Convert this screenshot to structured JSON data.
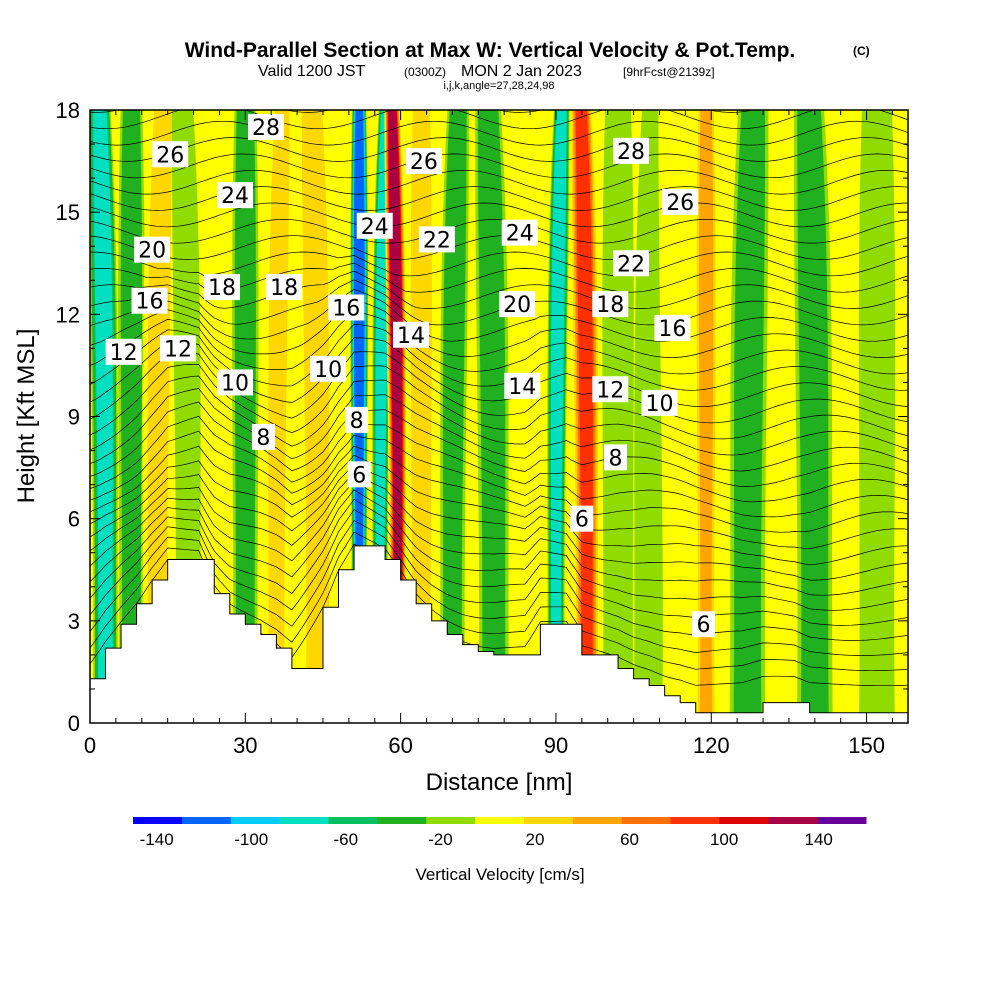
{
  "chart_data": {
    "type": "heatmap",
    "title": "Wind-Parallel Section at Max W: Vertical Velocity & Pot.Temp.",
    "title_units": "(C)",
    "subtitle_prefix": "Valid 1200 JST",
    "subtitle_utc": "(0300Z)",
    "subtitle_main": "MON 2 Jan 2023",
    "subtitle_fcst": "[9hrFcst@2139z]",
    "subtitle_indices": "i,j,k,angle=27,28,24,98",
    "xlabel": "Distance [nm]",
    "ylabel": "Height [Kft MSL]",
    "xlim": [
      0,
      158
    ],
    "ylim": [
      0,
      18
    ],
    "xticks": [
      0,
      30,
      60,
      90,
      120,
      150
    ],
    "yticks": [
      0,
      3,
      6,
      9,
      12,
      15,
      18
    ],
    "colorbar": {
      "label": "Vertical Velocity [cm/s]",
      "ticks": [
        -140,
        -100,
        -60,
        -20,
        20,
        60,
        100,
        140
      ],
      "bounds": [
        -150,
        160
      ],
      "colors": [
        "#0000ff",
        "#0066ff",
        "#00ccff",
        "#00e0c0",
        "#00c060",
        "#20b020",
        "#90dc00",
        "#ffff00",
        "#ffd700",
        "#ffa500",
        "#ff7000",
        "#ff3000",
        "#dd0000",
        "#aa0044",
        "#660099"
      ]
    },
    "vv_features": [
      {
        "x": 3,
        "w": 2.5,
        "value": -80
      },
      {
        "x": 8,
        "w": 2.5,
        "value": -30
      },
      {
        "x": 13,
        "w": 3,
        "value": 20
      },
      {
        "x": 19,
        "w": 2.5,
        "value": -20
      },
      {
        "x": 30,
        "w": 2.5,
        "value": -40
      },
      {
        "x": 36,
        "w": 2.5,
        "value": 25
      },
      {
        "x": 44,
        "w": 3,
        "value": 30
      },
      {
        "x": 52,
        "w": 1.6,
        "value": -110
      },
      {
        "x": 56,
        "w": 1.6,
        "value": -70
      },
      {
        "x": 59.5,
        "w": 1.8,
        "value": 125
      },
      {
        "x": 64,
        "w": 2.5,
        "value": 30
      },
      {
        "x": 70,
        "w": 2.5,
        "value": -30
      },
      {
        "x": 78,
        "w": 3,
        "value": -30
      },
      {
        "x": 85,
        "w": 2.5,
        "value": 15
      },
      {
        "x": 90,
        "w": 1.8,
        "value": -80
      },
      {
        "x": 96,
        "w": 2.6,
        "value": 85
      },
      {
        "x": 102,
        "w": 3,
        "value": -25
      },
      {
        "x": 108,
        "w": 3,
        "value": -20
      },
      {
        "x": 113,
        "w": 2.5,
        "value": 10
      },
      {
        "x": 119,
        "w": 2.2,
        "value": 45
      },
      {
        "x": 127,
        "w": 3.5,
        "value": -30
      },
      {
        "x": 140,
        "w": 3.5,
        "value": -35
      },
      {
        "x": 152,
        "w": 3.5,
        "value": -25
      }
    ],
    "terrain": [
      [
        0,
        1.3
      ],
      [
        3,
        2.2
      ],
      [
        6,
        2.9
      ],
      [
        9,
        3.5
      ],
      [
        12,
        4.2
      ],
      [
        15,
        4.8
      ],
      [
        21,
        4.8
      ],
      [
        24,
        3.8
      ],
      [
        27,
        3.2
      ],
      [
        30,
        2.9
      ],
      [
        33,
        2.6
      ],
      [
        36,
        2.2
      ],
      [
        39,
        1.6
      ],
      [
        45,
        3.4
      ],
      [
        48,
        4.5
      ],
      [
        51,
        5.2
      ],
      [
        57,
        4.8
      ],
      [
        60,
        4.2
      ],
      [
        63,
        3.5
      ],
      [
        66,
        3.0
      ],
      [
        69,
        2.6
      ],
      [
        72,
        2.3
      ],
      [
        75,
        2.1
      ],
      [
        78,
        2.0
      ],
      [
        84,
        2.0
      ],
      [
        87,
        2.9
      ],
      [
        92,
        2.9
      ],
      [
        95,
        2.0
      ],
      [
        102,
        1.6
      ],
      [
        105,
        1.3
      ],
      [
        108,
        1.1
      ],
      [
        111,
        0.8
      ],
      [
        114,
        0.6
      ],
      [
        117,
        0.3
      ],
      [
        126,
        0.3
      ],
      [
        130,
        0.6
      ],
      [
        136,
        0.6
      ],
      [
        139,
        0.3
      ],
      [
        158,
        0.3
      ]
    ],
    "contour_labels": [
      {
        "x": 34,
        "y": 17.5,
        "text": "28"
      },
      {
        "x": 15.5,
        "y": 16.7,
        "text": "26"
      },
      {
        "x": 28,
        "y": 15.5,
        "text": "24"
      },
      {
        "x": 12,
        "y": 13.9,
        "text": "20"
      },
      {
        "x": 11.5,
        "y": 12.4,
        "text": "16"
      },
      {
        "x": 25.5,
        "y": 12.8,
        "text": "18"
      },
      {
        "x": 37.5,
        "y": 12.8,
        "text": "18"
      },
      {
        "x": 6.5,
        "y": 10.9,
        "text": "12"
      },
      {
        "x": 17,
        "y": 11.0,
        "text": "12"
      },
      {
        "x": 28,
        "y": 10.0,
        "text": "10"
      },
      {
        "x": 46,
        "y": 10.4,
        "text": "10"
      },
      {
        "x": 33.5,
        "y": 8.4,
        "text": "8"
      },
      {
        "x": 49.5,
        "y": 12.2,
        "text": "16"
      },
      {
        "x": 55,
        "y": 14.6,
        "text": "24"
      },
      {
        "x": 62,
        "y": 11.4,
        "text": "14"
      },
      {
        "x": 51.5,
        "y": 8.9,
        "text": "8"
      },
      {
        "x": 52,
        "y": 7.3,
        "text": "6"
      },
      {
        "x": 64.5,
        "y": 16.5,
        "text": "26"
      },
      {
        "x": 67,
        "y": 14.2,
        "text": "22"
      },
      {
        "x": 83,
        "y": 14.4,
        "text": "24"
      },
      {
        "x": 82.5,
        "y": 12.3,
        "text": "20"
      },
      {
        "x": 83.5,
        "y": 9.9,
        "text": "14"
      },
      {
        "x": 95,
        "y": 6.0,
        "text": "6"
      },
      {
        "x": 104.5,
        "y": 16.8,
        "text": "28"
      },
      {
        "x": 114,
        "y": 15.3,
        "text": "26"
      },
      {
        "x": 104.5,
        "y": 13.5,
        "text": "22"
      },
      {
        "x": 100.5,
        "y": 12.3,
        "text": "18"
      },
      {
        "x": 112.5,
        "y": 11.6,
        "text": "16"
      },
      {
        "x": 100.5,
        "y": 9.8,
        "text": "12"
      },
      {
        "x": 110,
        "y": 9.4,
        "text": "10"
      },
      {
        "x": 101.5,
        "y": 7.8,
        "text": "8"
      },
      {
        "x": 118.5,
        "y": 2.9,
        "text": "6"
      }
    ]
  }
}
